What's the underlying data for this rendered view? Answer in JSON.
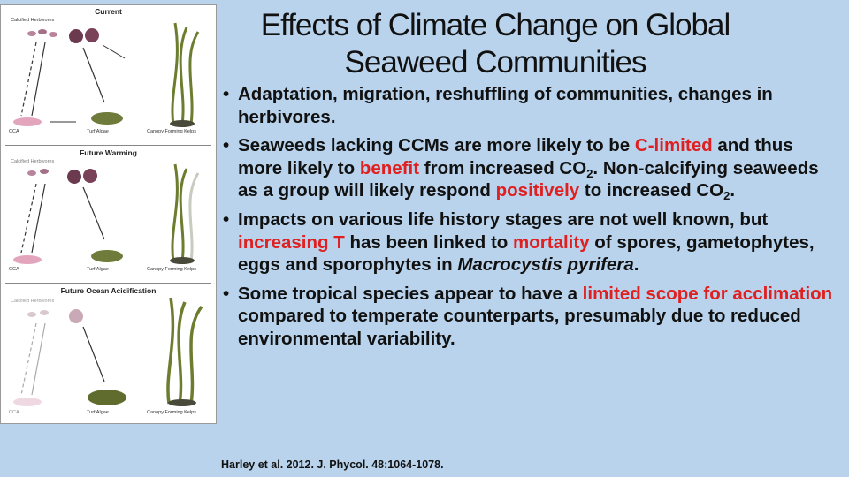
{
  "title": {
    "line1": "Effects of Climate Change on Global",
    "line2": "Seaweed Communities"
  },
  "bullets": [
    {
      "parts": [
        {
          "t": "Adaptation, migration, reshuffling of communities, changes in herbivores."
        }
      ]
    },
    {
      "parts": [
        {
          "t": "Seaweeds lacking CCMs are more likely to be "
        },
        {
          "t": "C-limited",
          "style": "red"
        },
        {
          "t": " and thus more likely to "
        },
        {
          "t": "benefit",
          "style": "red"
        },
        {
          "t": " from increased CO"
        },
        {
          "t": "2",
          "style": "sub"
        },
        {
          "t": ".  Non-calcifying seaweeds as a group will likely respond "
        },
        {
          "t": "positively",
          "style": "red"
        },
        {
          "t": " to increased CO"
        },
        {
          "t": "2",
          "style": "sub"
        },
        {
          "t": "."
        }
      ]
    },
    {
      "parts": [
        {
          "t": "Impacts on various life history stages are not well known, but "
        },
        {
          "t": "increasing T",
          "style": "red"
        },
        {
          "t": " has been linked to "
        },
        {
          "t": "mortality",
          "style": "red"
        },
        {
          "t": " of spores, gametophytes, eggs and sporophytes in "
        },
        {
          "t": "Macrocystis pyrifera",
          "style": "ital"
        },
        {
          "t": "."
        }
      ]
    },
    {
      "parts": [
        {
          "t": "Some tropical species appear to have a "
        },
        {
          "t": "limited scope for acclimation",
          "style": "red"
        },
        {
          "t": " compared to temperate counterparts, presumably due to reduced environmental variability."
        }
      ]
    }
  ],
  "citation": "Harley et al. 2012.  J. Phycol.  48:1064-1078.",
  "figure": {
    "panels": [
      {
        "title": "Current",
        "herbivores": "Calcified Herbivores"
      },
      {
        "title": "Future Warming",
        "herbivores": "Calcified Herbivores"
      },
      {
        "title": "Future Ocean Acidification",
        "herbivores": "Calcified Herbivores"
      }
    ],
    "labels": {
      "cca": "CCA",
      "turf": "Turf Algae",
      "kelp": "Canopy Forming Kelps"
    }
  },
  "colors": {
    "background": "#b9d3ec",
    "highlight": "#e02020"
  }
}
